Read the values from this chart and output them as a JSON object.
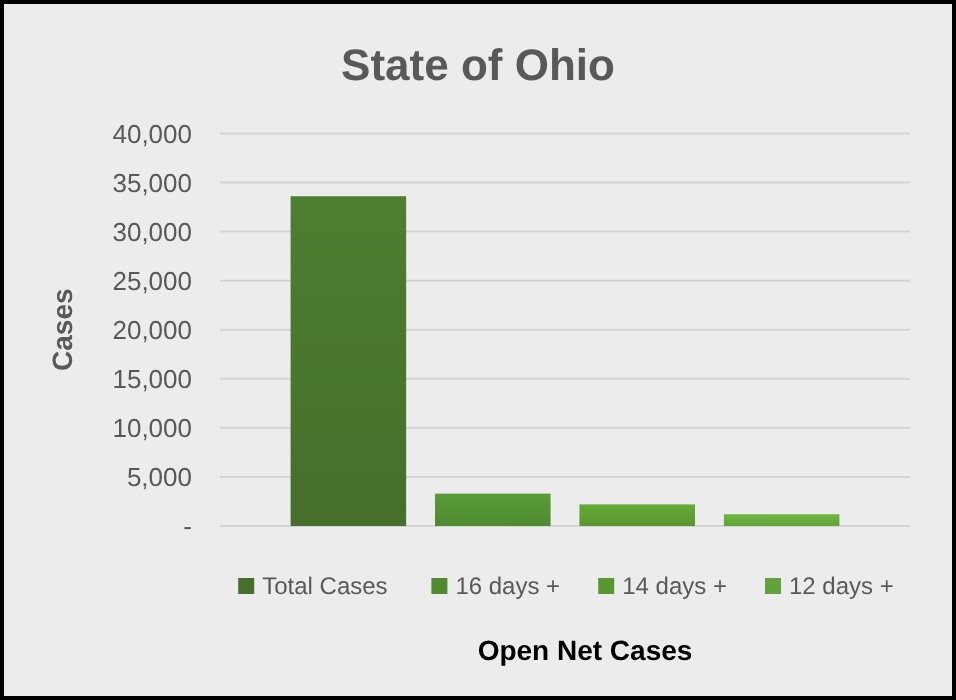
{
  "chart_data": {
    "type": "bar",
    "title": "State of Ohio",
    "xlabel": "Open Net Cases",
    "ylabel": "Cases",
    "categories": [
      null
    ],
    "series": [
      {
        "name": "Total Cases",
        "color": "#456f2a",
        "values": [
          33600
        ]
      },
      {
        "name": "16 days +",
        "color": "#4f8a30",
        "values": [
          3300
        ]
      },
      {
        "name": "14 days +",
        "color": "#58962f",
        "values": [
          2200
        ]
      },
      {
        "name": "12 days +",
        "color": "#62a23a",
        "values": [
          1200
        ]
      }
    ],
    "ylim": [
      0,
      40000
    ],
    "yticks": [
      {
        "value": 0,
        "label": "-"
      },
      {
        "value": 5000,
        "label": "5,000"
      },
      {
        "value": 10000,
        "label": "10,000"
      },
      {
        "value": 15000,
        "label": "15,000"
      },
      {
        "value": 20000,
        "label": "20,000"
      },
      {
        "value": 25000,
        "label": "25,000"
      },
      {
        "value": 30000,
        "label": "30,000"
      },
      {
        "value": 35000,
        "label": "35,000"
      },
      {
        "value": 40000,
        "label": "40,000"
      }
    ],
    "grid": "y",
    "legend": "bottom"
  }
}
